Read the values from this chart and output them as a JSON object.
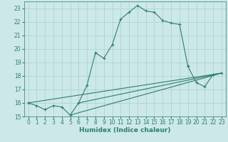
{
  "xlabel": "Humidex (Indice chaleur)",
  "xlim": [
    -0.5,
    23.5
  ],
  "ylim": [
    15,
    23.5
  ],
  "yticks": [
    15,
    16,
    17,
    18,
    19,
    20,
    21,
    22,
    23
  ],
  "xticks": [
    0,
    1,
    2,
    3,
    4,
    5,
    6,
    7,
    8,
    9,
    10,
    11,
    12,
    13,
    14,
    15,
    16,
    17,
    18,
    19,
    20,
    21,
    22,
    23
  ],
  "bg_color": "#cce8e8",
  "grid_color": "#aad0d0",
  "line_color": "#2e7d6e",
  "s1x": [
    0,
    1,
    2,
    3,
    4,
    5,
    6,
    7,
    8,
    9,
    10,
    11,
    12,
    13,
    14,
    15,
    16,
    17,
    18,
    19
  ],
  "s1y": [
    16.0,
    15.8,
    15.5,
    15.8,
    15.7,
    15.1,
    16.0,
    17.3,
    19.7,
    19.3,
    20.3,
    22.2,
    22.7,
    23.2,
    22.8,
    22.7,
    22.1,
    21.9,
    21.8,
    18.7
  ],
  "s_tail_x": [
    19,
    20,
    21,
    22,
    23
  ],
  "s_tail_y": [
    18.7,
    17.5,
    17.2,
    18.1,
    18.2
  ],
  "line1": {
    "x": [
      0,
      23
    ],
    "y": [
      16.0,
      18.2
    ]
  },
  "line2": {
    "x": [
      5,
      23
    ],
    "y": [
      15.1,
      18.2
    ]
  },
  "line3": {
    "x": [
      6,
      23
    ],
    "y": [
      16.0,
      18.2
    ]
  },
  "tick_fontsize": 5.5,
  "xlabel_fontsize": 6.5
}
